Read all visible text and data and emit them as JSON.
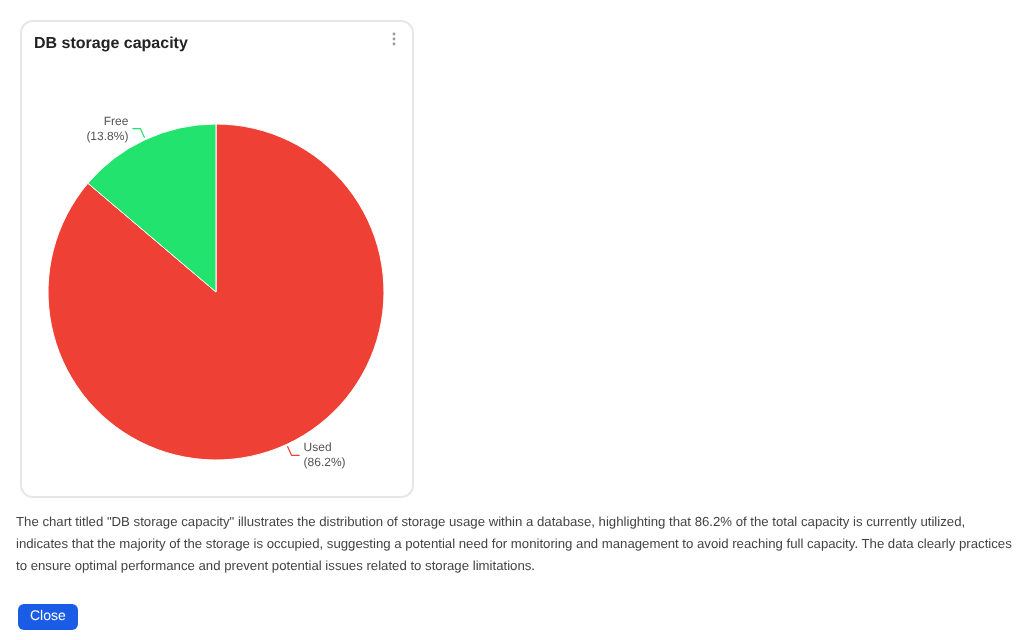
{
  "chart_data": {
    "type": "pie",
    "title": "DB storage capacity",
    "categories": [
      "Used",
      "Free"
    ],
    "values": [
      86.2,
      13.8
    ],
    "value_labels": [
      "(86.2%)",
      "(13.8%)"
    ],
    "colors": [
      "#ee4035",
      "#22e36e"
    ],
    "annotations": [
      "The chart titled \"DB storage capacity\" illustrates the distribution of storage usage within a database, highlighting that 86.2% of the total capacity is currently utilized, indicates that the majority of the storage is occupied, suggesting a potential need for monitoring and management to avoid reaching full capacity. The data clearly practices to ensure optimal performance and prevent potential issues related to storage limitations.",
      "Close"
    ]
  }
}
